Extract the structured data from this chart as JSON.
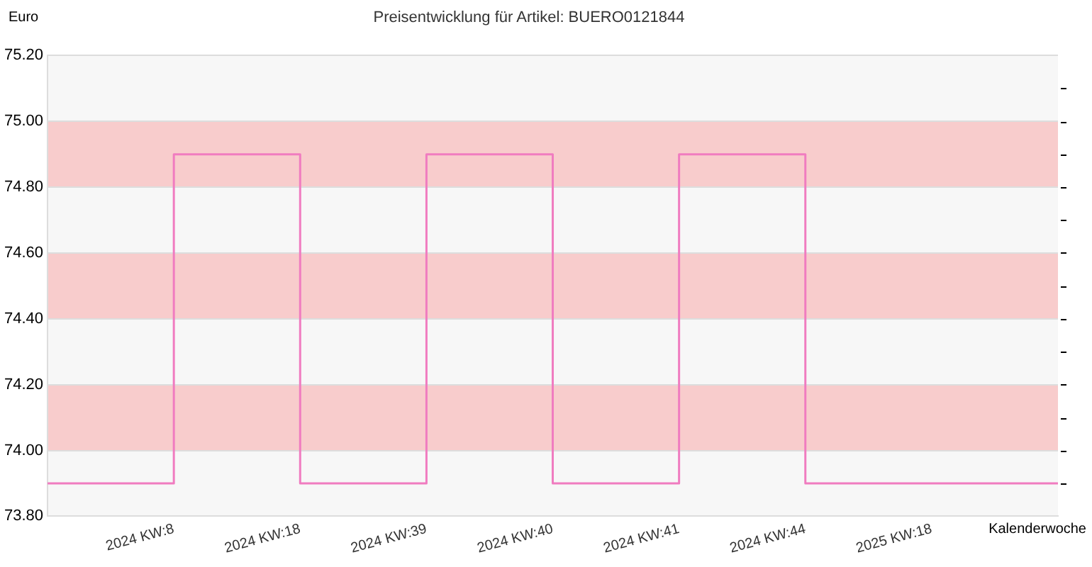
{
  "chart_data": {
    "type": "step",
    "title": "Preisentwicklung für Artikel: BUERO0121844",
    "ylabel": "Euro",
    "xlabel": "Kalenderwoche",
    "categories": [
      null,
      "2024 KW:8",
      "2024 KW:18",
      "2024 KW:39",
      "2024 KW:40",
      "2024 KW:41",
      "2024 KW:44",
      "2025 KW:18",
      null
    ],
    "series": [
      {
        "color": "#f07cc0",
        "values": [
          73.9,
          73.9,
          74.9,
          73.9,
          74.9,
          73.9,
          74.9,
          73.9,
          73.9
        ]
      }
    ],
    "ylim": [
      73.8,
      75.2
    ],
    "yticks": [
      {
        "value": 73.8,
        "label": "73.80"
      },
      {
        "value": 74.0,
        "label": "74.00"
      },
      {
        "value": 74.2,
        "label": "74.20"
      },
      {
        "value": 74.4,
        "label": "74.40"
      },
      {
        "value": 74.6,
        "label": "74.60"
      },
      {
        "value": 74.8,
        "label": "74.80"
      },
      {
        "value": 75.0,
        "label": "75.00"
      },
      {
        "value": 75.2,
        "label": "75.20"
      }
    ],
    "bands": [
      {
        "axis": "y",
        "from": 74.0,
        "to": 74.2,
        "color": "#f8cccc"
      },
      {
        "axis": "y",
        "from": 74.4,
        "to": 74.6,
        "color": "#f8cccc"
      },
      {
        "axis": "y",
        "from": 74.8,
        "to": 75.0,
        "color": "#f8cccc"
      }
    ],
    "grid": "y",
    "legend": false,
    "marker": "none",
    "line_style": "solid"
  }
}
